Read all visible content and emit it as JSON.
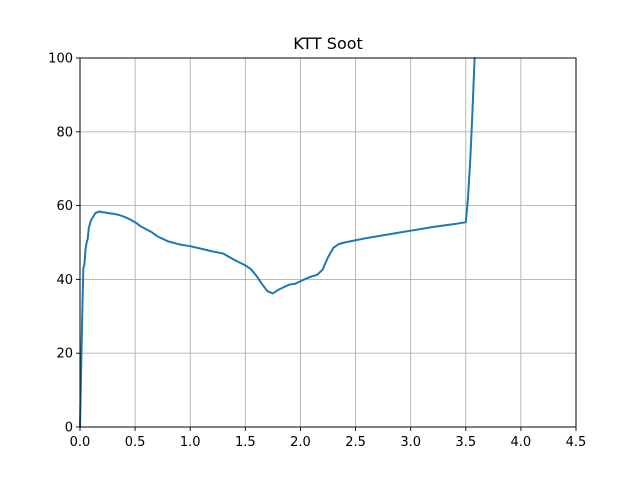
{
  "chart_data": {
    "type": "line",
    "title": "KTT Soot",
    "xlabel": "",
    "ylabel": "",
    "xlim": [
      0,
      4.5
    ],
    "ylim": [
      0,
      100
    ],
    "xticks": [
      0.0,
      0.5,
      1.0,
      1.5,
      2.0,
      2.5,
      3.0,
      3.5,
      4.0,
      4.5
    ],
    "xtick_labels": [
      "0.0",
      "0.5",
      "1.0",
      "1.5",
      "2.0",
      "2.5",
      "3.0",
      "3.5",
      "4.0",
      "4.5"
    ],
    "yticks": [
      0,
      20,
      40,
      60,
      80,
      100
    ],
    "ytick_labels": [
      "0",
      "20",
      "40",
      "60",
      "80",
      "100"
    ],
    "grid": true,
    "series": [
      {
        "color": "#1f77b4",
        "x": [
          0.0,
          0.01,
          0.02,
          0.03,
          0.04,
          0.05,
          0.06,
          0.07,
          0.08,
          0.1,
          0.12,
          0.14,
          0.16,
          0.18,
          0.2,
          0.22,
          0.25,
          0.3,
          0.35,
          0.4,
          0.45,
          0.5,
          0.55,
          0.6,
          0.65,
          0.7,
          0.75,
          0.8,
          0.9,
          1.0,
          1.1,
          1.2,
          1.3,
          1.4,
          1.5,
          1.55,
          1.6,
          1.65,
          1.7,
          1.75,
          1.8,
          1.85,
          1.9,
          1.95,
          2.0,
          2.05,
          2.1,
          2.15,
          2.2,
          2.25,
          2.3,
          2.35,
          2.4,
          2.45,
          2.5,
          2.6,
          2.7,
          2.8,
          2.9,
          3.0,
          3.1,
          3.2,
          3.3,
          3.4,
          3.5,
          3.52,
          3.54,
          3.56,
          3.58
        ],
        "y": [
          0,
          15,
          30,
          43,
          44,
          48,
          50,
          51,
          54,
          56,
          57,
          58,
          58.2,
          58.4,
          58.2,
          58.2,
          58.0,
          57.8,
          57.5,
          57.0,
          56.3,
          55.5,
          54.4,
          53.6,
          52.8,
          51.7,
          51.0,
          50.3,
          49.5,
          49.0,
          48.3,
          47.6,
          47.0,
          45.3,
          43.8,
          42.8,
          41.0,
          38.8,
          36.8,
          36.2,
          37.2,
          37.9,
          38.6,
          38.8,
          39.5,
          40.2,
          40.8,
          41.2,
          42.6,
          46.0,
          48.6,
          49.6,
          50.0,
          50.3,
          50.6,
          51.2,
          51.7,
          52.2,
          52.7,
          53.2,
          53.7,
          54.2,
          54.6,
          55.0,
          55.5,
          62,
          72,
          85,
          100
        ]
      }
    ]
  }
}
